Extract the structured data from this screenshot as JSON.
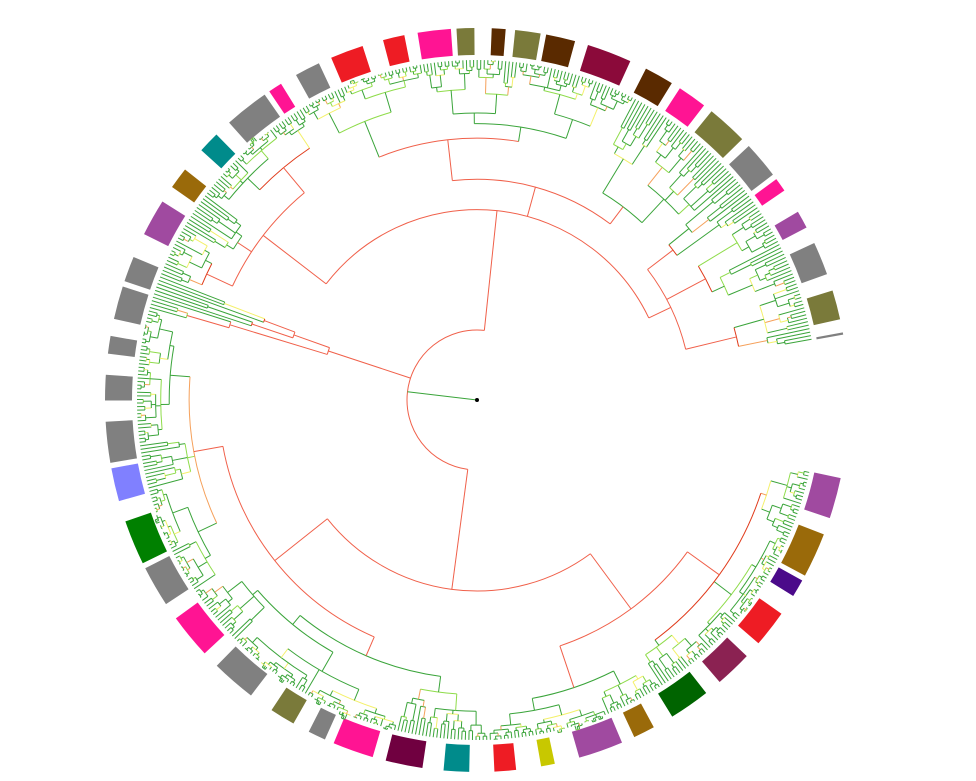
{
  "diagram": {
    "type": "circular-phylogenetic-tree",
    "leaf_count": 560,
    "gap_start_deg": 350,
    "gap_end_deg": 12,
    "branch_colors": {
      "high": "#3aa43a",
      "mid_high": "#8fdc4a",
      "mid": "#f4f06a",
      "mid_low": "#f5a05a",
      "low": "#f0604a",
      "lowest": "#e03a1a"
    },
    "outer_ring_colors": [
      "#a04aa0",
      "#9a6a0a",
      "#4b0a8a",
      "#ee1c24",
      "#8b2252",
      "#006400",
      "#9a6a0a",
      "#a04aa0",
      "#c8c800",
      "#ee1c24",
      "#008b8b",
      "#700040",
      "#ff1493",
      "#808080",
      "#7a7a3a",
      "#808080",
      "#ff1493",
      "#808080",
      "#008000",
      "#8080ff",
      "#808080",
      "#808080",
      "#808080",
      "#808080",
      "#808080",
      "#a04aa0",
      "#9a6a0a",
      "#008b8b",
      "#808080",
      "#ff1493",
      "#808080",
      "#ee1c24",
      "#ee1c24",
      "#ff1493",
      "#7a7a3a",
      "#5a2a00",
      "#7a7a3a",
      "#5a2a00",
      "#8b0a3a",
      "#5a2a00",
      "#ff1493",
      "#7a7a3a",
      "#808080",
      "#ff1493",
      "#a04aa0",
      "#808080",
      "#7a7a3a",
      "#808080",
      "#808080",
      "#808080",
      "#808080",
      "#ee1c24",
      "#ee1c24",
      "#006400",
      "#700040",
      "#808080",
      "#ee1c24",
      "#808080",
      "#008b8b",
      "#006400",
      "#808080",
      "#ff1493",
      "#7a7a3a",
      "#808080",
      "#008000",
      "#0000ff",
      "#008000",
      "#0000ff",
      "#8b0000",
      "#9a6a0a",
      "#e8740a"
    ]
  }
}
